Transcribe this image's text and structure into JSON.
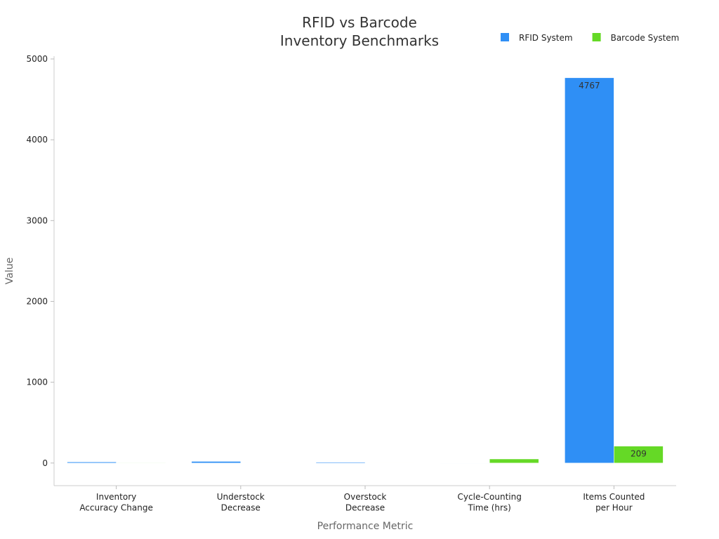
{
  "chart_data": {
    "type": "bar",
    "title": "RFID vs Barcode\nInventory Benchmarks",
    "x_label": "Performance Metric",
    "y_label": "Value",
    "categories": [
      "Inventory\nAccuracy Change",
      "Understock\nDecrease",
      "Overstock\nDecrease",
      "Cycle-Counting\nTime (hrs)",
      "Items Counted\nper Hour"
    ],
    "series": [
      {
        "name": "RFID System",
        "color": "#2f8ff5",
        "values": [
          13,
          20,
          10,
          2,
          4767
        ]
      },
      {
        "name": "Barcode System",
        "color": "#65d926",
        "values": [
          5,
          0,
          0,
          50,
          209
        ]
      }
    ],
    "ylim": [
      -280,
      5000
    ],
    "yticks": [
      0,
      1000,
      2000,
      3000,
      4000,
      5000
    ],
    "grid": false,
    "legend": "top-right"
  }
}
